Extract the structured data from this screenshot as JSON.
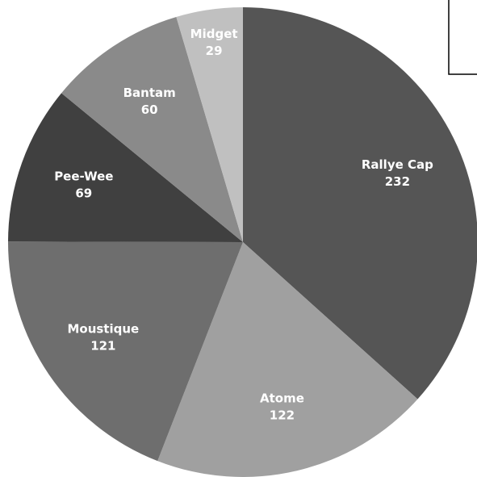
{
  "chart_data": {
    "type": "pie",
    "categories": [
      "Rallye Cap",
      "Atome",
      "Moustique",
      "Pee-Wee",
      "Bantam",
      "Midget"
    ],
    "values": [
      232,
      122,
      121,
      69,
      60,
      29
    ],
    "colors": [
      "#555555",
      "#a0a0a0",
      "#6e6e6e",
      "#404040",
      "#8a8a8a",
      "#c0c0c0"
    ]
  }
}
